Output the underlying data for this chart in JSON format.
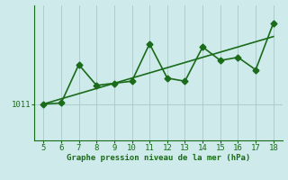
{
  "x": [
    5,
    6,
    7,
    8,
    9,
    10,
    11,
    12,
    13,
    14,
    15,
    16,
    17,
    18
  ],
  "y_data": [
    1011.0,
    1011.1,
    1014.8,
    1012.8,
    1013.0,
    1013.2,
    1016.8,
    1013.5,
    1013.2,
    1016.5,
    1015.2,
    1015.5,
    1014.3,
    1018.8
  ],
  "y_trend": [
    1011.0,
    1011.5,
    1012.0,
    1012.5,
    1013.0,
    1013.5,
    1014.0,
    1014.5,
    1015.0,
    1015.5,
    1016.0,
    1016.5,
    1017.0,
    1017.5
  ],
  "line_color": "#1a6b1a",
  "bg_color": "#ceeaea",
  "grid_color": "#aecece",
  "xlabel": "Graphe pression niveau de la mer (hPa)",
  "ylabel_tick": "1011",
  "ytick_val": 1011.0,
  "xlim": [
    4.5,
    18.5
  ],
  "ylim": [
    1007.5,
    1020.5
  ],
  "xticks": [
    5,
    6,
    7,
    8,
    9,
    10,
    11,
    12,
    13,
    14,
    15,
    16,
    17,
    18
  ],
  "yticks": [
    1011.0
  ],
  "markersize": 3.5,
  "linewidth": 1.2
}
